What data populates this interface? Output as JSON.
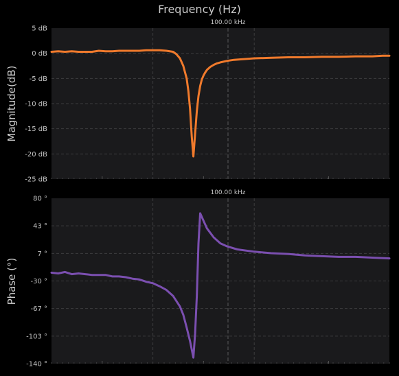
{
  "title": "Frequency (Hz)",
  "chart_data": [
    {
      "type": "line",
      "title": "",
      "xlabel": "",
      "ylabel": "Magnitude(dB)",
      "x_marker_label": "100.00 kHz",
      "yticks": [
        "5 dB",
        "0 dB",
        "-5 dB",
        "-10 dB",
        "-15 dB",
        "-20 dB",
        "-25 dB"
      ],
      "ylim": [
        -25,
        5
      ],
      "grid": true,
      "series": [
        {
          "name": "",
          "color": "#f07a2c",
          "x": [
            0,
            0.02,
            0.04,
            0.06,
            0.08,
            0.1,
            0.12,
            0.14,
            0.16,
            0.18,
            0.2,
            0.22,
            0.24,
            0.26,
            0.28,
            0.3,
            0.32,
            0.34,
            0.36,
            0.37,
            0.38,
            0.39,
            0.4,
            0.405,
            0.41,
            0.415,
            0.42,
            0.425,
            0.43,
            0.435,
            0.44,
            0.445,
            0.45,
            0.455,
            0.46,
            0.47,
            0.48,
            0.49,
            0.5,
            0.52,
            0.54,
            0.56,
            0.58,
            0.6,
            0.65,
            0.7,
            0.75,
            0.8,
            0.85,
            0.9,
            0.95,
            0.98,
            1.0
          ],
          "y": [
            0.3,
            0.4,
            0.3,
            0.4,
            0.3,
            0.3,
            0.3,
            0.5,
            0.4,
            0.4,
            0.5,
            0.5,
            0.5,
            0.5,
            0.6,
            0.6,
            0.6,
            0.5,
            0.3,
            -0.2,
            -1.0,
            -2.5,
            -5.0,
            -7.5,
            -11.0,
            -16.5,
            -20.5,
            -16.0,
            -11.5,
            -8.5,
            -6.5,
            -5.2,
            -4.4,
            -3.8,
            -3.3,
            -2.7,
            -2.3,
            -2.0,
            -1.8,
            -1.5,
            -1.3,
            -1.2,
            -1.1,
            -1.0,
            -0.9,
            -0.8,
            -0.8,
            -0.7,
            -0.7,
            -0.6,
            -0.6,
            -0.5,
            -0.5
          ]
        }
      ]
    },
    {
      "type": "line",
      "title": "",
      "xlabel": "",
      "ylabel": "Phase (°)",
      "x_marker_label": "100.00 kHz",
      "yticks": [
        "80 °",
        "43 °",
        "7 °",
        "-30 °",
        "-67 °",
        "-103 °",
        "-140 °"
      ],
      "ylim": [
        -140,
        80
      ],
      "grid": true,
      "series": [
        {
          "name": "",
          "color": "#7b4fb0",
          "x": [
            0,
            0.02,
            0.04,
            0.06,
            0.08,
            0.1,
            0.12,
            0.14,
            0.16,
            0.18,
            0.2,
            0.22,
            0.24,
            0.26,
            0.28,
            0.3,
            0.32,
            0.34,
            0.36,
            0.38,
            0.39,
            0.4,
            0.41,
            0.42,
            0.425,
            0.43,
            0.435,
            0.44,
            0.45,
            0.46,
            0.48,
            0.5,
            0.52,
            0.55,
            0.6,
            0.65,
            0.7,
            0.75,
            0.8,
            0.85,
            0.9,
            0.95,
            1.0
          ],
          "y": [
            -19,
            -20,
            -18,
            -21,
            -20,
            -21,
            -22,
            -22,
            -22,
            -24,
            -24,
            -25,
            -27,
            -28,
            -31,
            -33,
            -37,
            -42,
            -50,
            -64,
            -75,
            -92,
            -110,
            -132,
            -100,
            -50,
            20,
            60,
            50,
            40,
            28,
            20,
            16,
            12,
            9,
            7,
            6,
            4,
            3,
            2,
            2,
            1,
            0
          ]
        }
      ]
    }
  ]
}
